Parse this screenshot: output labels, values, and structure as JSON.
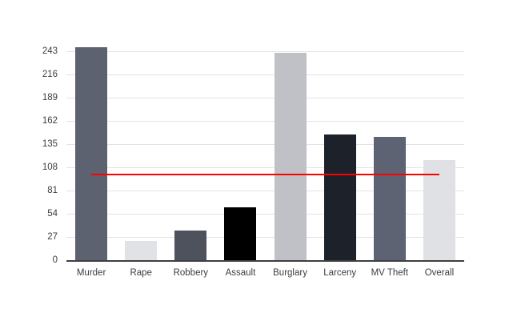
{
  "chart_data": {
    "type": "bar",
    "title": "",
    "xlabel": "",
    "ylabel": "",
    "categories": [
      "Murder",
      "Rape",
      "Robbery",
      "Assault",
      "Burglary",
      "Larceny",
      "MV Theft",
      "Overall"
    ],
    "values": [
      248,
      23,
      35,
      62,
      241,
      146,
      144,
      117
    ],
    "bar_colors": [
      "#5c6270",
      "#e1e2e5",
      "#4d525d",
      "#000000",
      "#bfc1c7",
      "#1d212a",
      "#5d6372",
      "#e0e1e5"
    ],
    "ylim": [
      0,
      243
    ],
    "y_ticks": [
      0,
      27,
      54,
      81,
      108,
      135,
      162,
      189,
      216,
      243
    ],
    "grid": "horizontal-only",
    "legend": "none",
    "reference_line": {
      "value": 100,
      "color": "#ff0000",
      "extent": "center of Murder bar to center of Overall bar"
    },
    "style_colors": {
      "background": "#ffffff",
      "gridline": "#e3e3e3",
      "axis_line": "#3f3f3f",
      "tick_label": "#3a3d42"
    }
  }
}
